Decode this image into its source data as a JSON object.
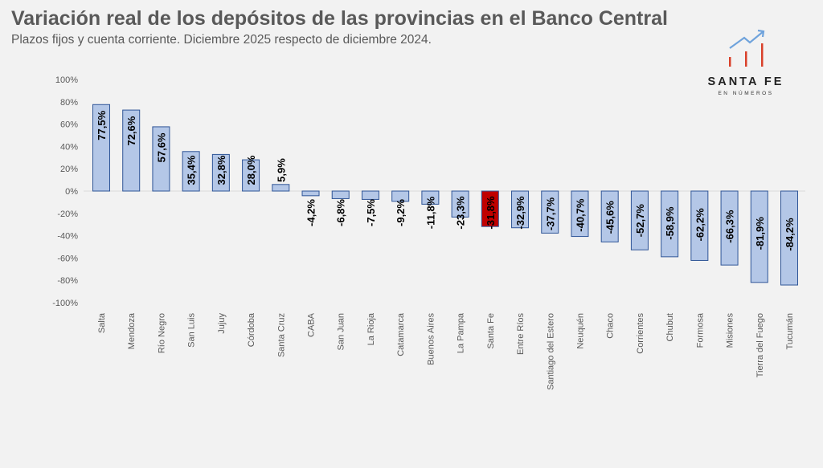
{
  "header": {
    "title": "Variación real de los depósitos de las provincias en el Banco Central",
    "subtitle": "Plazos fijos y cuenta corriente. Diciembre 2025 respecto de diciembre 2024."
  },
  "logo": {
    "name": "SANTA FE",
    "tagline": "EN NÚMEROS"
  },
  "colors": {
    "bar": "#b4c7e7",
    "bar_border": "#2f5597",
    "highlight": "#c00000",
    "text": "#595959"
  },
  "chart_data": {
    "type": "bar",
    "title": "Variación real de los depósitos de las provincias en el Banco Central",
    "ylim": [
      -100,
      100
    ],
    "yticks": [
      100,
      80,
      60,
      40,
      20,
      0,
      -20,
      -40,
      -60,
      -80,
      -100
    ],
    "ytick_labels": [
      "100%",
      "80%",
      "60%",
      "40%",
      "20%",
      "0%",
      "-20%",
      "-40%",
      "-60%",
      "-80%",
      "-100%"
    ],
    "highlight": "Santa Fe",
    "categories": [
      "Salta",
      "Mendoza",
      "Río Negro",
      "San Luis",
      "Jujuy",
      "Córdoba",
      "Santa Cruz",
      "CABA",
      "San Juan",
      "La Rioja",
      "Catamarca",
      "Buenos Aires",
      "La Pampa",
      "Santa Fe",
      "Entre Ríos",
      "Santiago del Estero",
      "Neuquén",
      "Chaco",
      "Corrientes",
      "Chubut",
      "Formosa",
      "Misiones",
      "Tierra del Fuego",
      "Tucumán"
    ],
    "values": [
      77.5,
      72.6,
      57.6,
      35.4,
      32.8,
      28.0,
      5.9,
      -4.2,
      -6.8,
      -7.5,
      -9.2,
      -11.8,
      -23.3,
      -31.8,
      -32.9,
      -37.7,
      -40.7,
      -45.6,
      -52.7,
      -58.9,
      -62.2,
      -66.3,
      -81.9,
      -84.2
    ],
    "data_labels": [
      "77,5%",
      "72,6%",
      "57,6%",
      "35,4%",
      "32,8%",
      "28,0%",
      "5,9%",
      "-4,2%",
      "-6,8%",
      "-7,5%",
      "-9,2%",
      "-11,8%",
      "-23,3%",
      "-31,8%",
      "-32,9%",
      "-37,7%",
      "-40,7%",
      "-45,6%",
      "-52,7%",
      "-58,9%",
      "-62,2%",
      "-66,3%",
      "-81,9%",
      "-84,2%"
    ]
  }
}
